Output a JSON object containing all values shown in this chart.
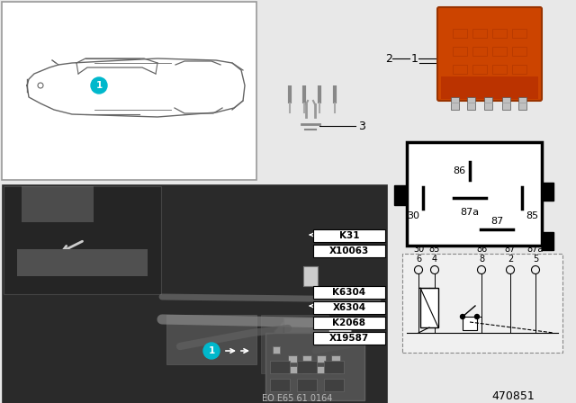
{
  "bg_color": "#e8e8e8",
  "white": "#ffffff",
  "black": "#000000",
  "gray_car": "#666666",
  "gray_light": "#aaaaaa",
  "teal_bubble": "#00b8cc",
  "orange_relay": "#cc4400",
  "dark_engine": "#404040",
  "dark_inset": "#303030",
  "part_number": "470851",
  "diagram_ref": "EO E65 61 0164",
  "engine_labels_top": [
    "K31",
    "X10063"
  ],
  "engine_labels_bottom": [
    "K6304",
    "X6304",
    "K2068",
    "X19587"
  ],
  "circuit_cols": [
    {
      "pin": "6",
      "label": "30"
    },
    {
      "pin": "4",
      "label": "85"
    },
    {
      "pin": "8",
      "label": "86"
    },
    {
      "pin": "2",
      "label": "87"
    },
    {
      "pin": "5",
      "label": "87a"
    }
  ],
  "relay_pins": [
    {
      "name": "87",
      "pos": "top"
    },
    {
      "name": "30",
      "pos": "left"
    },
    {
      "name": "87a",
      "pos": "mid"
    },
    {
      "name": "85",
      "pos": "right"
    },
    {
      "name": "86",
      "pos": "bot"
    }
  ]
}
